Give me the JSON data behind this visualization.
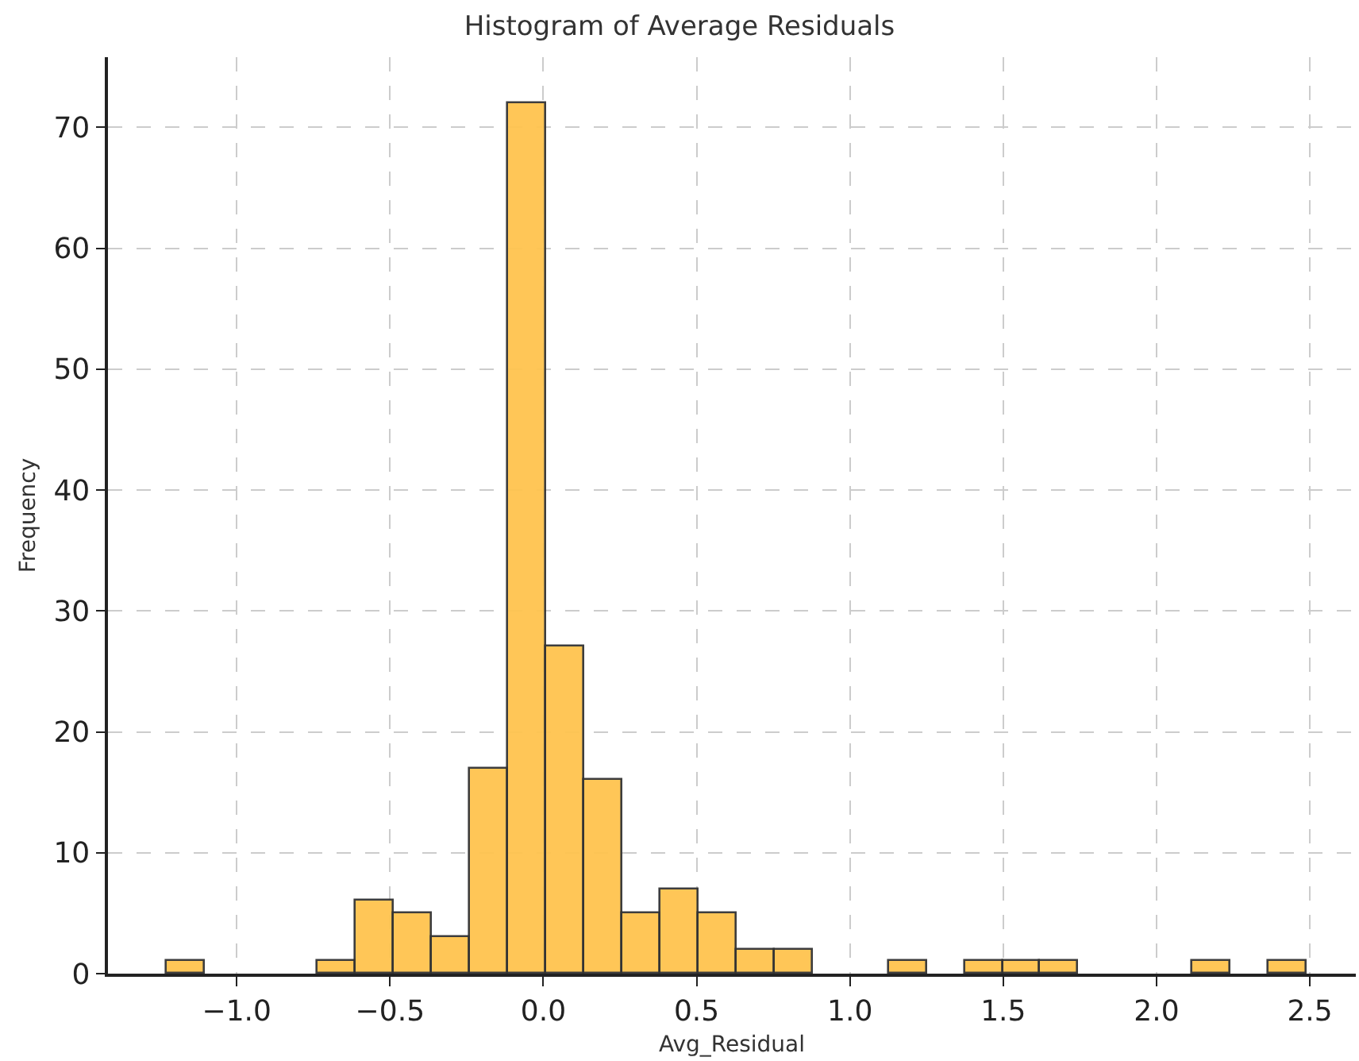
{
  "chart_data": {
    "type": "histogram",
    "title": "Histogram of Average Residuals",
    "xlabel": "Avg_Residual",
    "ylabel": "Frequency",
    "bins": [
      -1.23,
      -1.106,
      -0.982,
      -0.858,
      -0.734,
      -0.61,
      -0.486,
      -0.362,
      -0.238,
      -0.114,
      0.01,
      0.134,
      0.258,
      0.382,
      0.506,
      0.63,
      0.754,
      0.878,
      1.002,
      1.126,
      1.25,
      1.374,
      1.498,
      1.622,
      1.746,
      1.87,
      1.994,
      2.118,
      2.242,
      2.366,
      2.49
    ],
    "values": [
      1,
      0,
      0,
      0,
      1,
      6,
      5,
      3,
      17,
      72,
      27,
      16,
      5,
      7,
      5,
      2,
      2,
      0,
      0,
      1,
      0,
      1,
      1,
      1,
      0,
      0,
      0,
      1,
      0,
      1
    ],
    "color": "#ffc44f",
    "xlim": [
      -1.42,
      2.65
    ],
    "xticks": [
      {
        "value": -1,
        "label": "−1.0"
      },
      {
        "value": -0.5,
        "label": "−0.5"
      },
      {
        "value": 0,
        "label": "0.0"
      },
      {
        "value": 0.5,
        "label": "0.5"
      },
      {
        "value": 1,
        "label": "1.0"
      },
      {
        "value": 1.5,
        "label": "1.5"
      },
      {
        "value": 2,
        "label": "2.0"
      },
      {
        "value": 2.5,
        "label": "2.5"
      }
    ],
    "ylim": [
      0,
      75.8
    ],
    "yticks": [
      0,
      10,
      20,
      30,
      40,
      50,
      60,
      70
    ],
    "grid": true
  }
}
